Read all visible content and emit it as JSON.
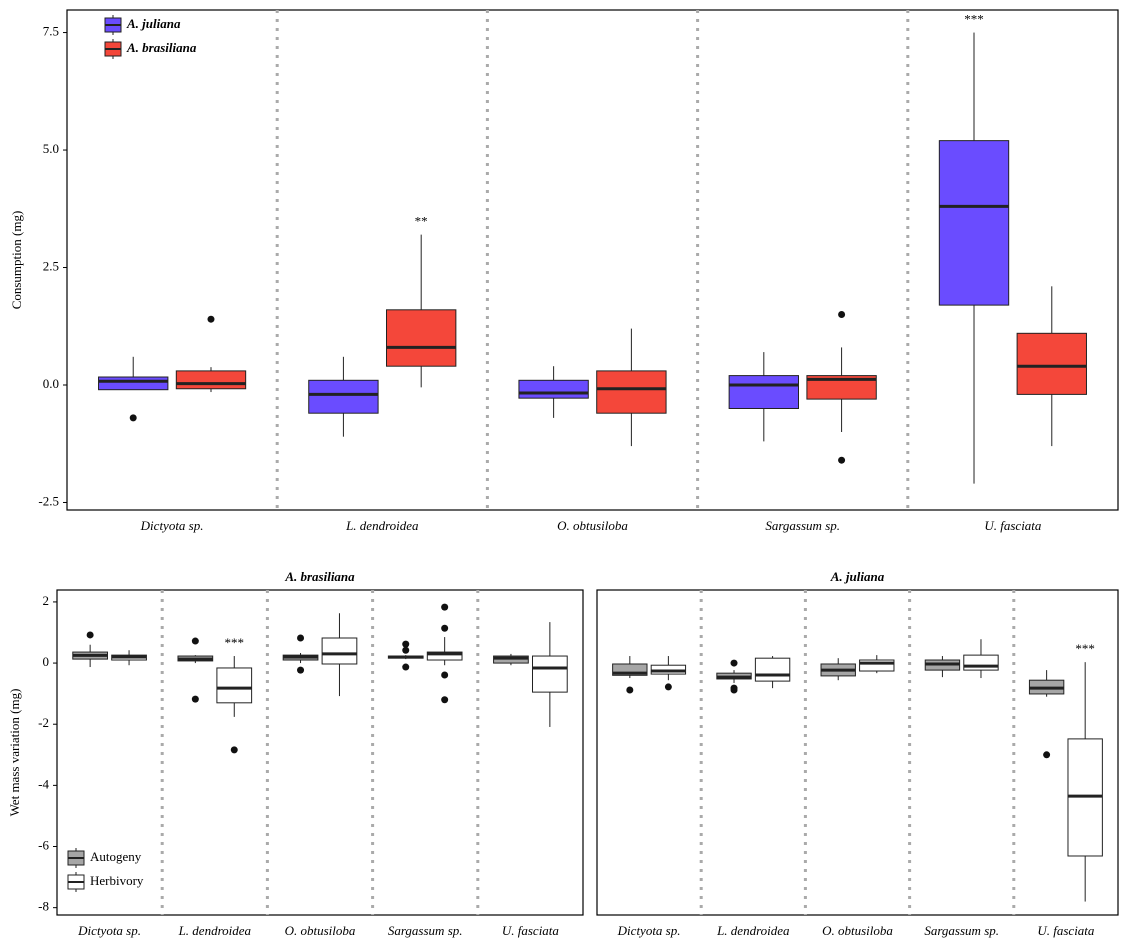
{
  "chart_data": [
    {
      "type": "boxplot",
      "y_label": "Consumption (mg)",
      "categories": [
        "Dictyota sp.",
        "L. dendroidea",
        "O. obtusiloba",
        "Sargassum sp.",
        "U. fasciata"
      ],
      "ylim": [
        -2.66,
        7.98
      ],
      "yticks": [
        {
          "value": -2.5,
          "label": "-2.5"
        },
        {
          "value": 0,
          "label": "0.0"
        },
        {
          "value": 2.5,
          "label": "2.5"
        },
        {
          "value": 5,
          "label": "5.0"
        },
        {
          "value": 7.5,
          "label": "7.5"
        }
      ],
      "legend": "top-left",
      "series": [
        {
          "name": "A. juliana",
          "color": "#6a4cff",
          "values": [
            {
              "min": -0.1,
              "q1": -0.1,
              "median": 0.08,
              "q3": 0.17,
              "max": 0.6,
              "outliers": [
                -0.7
              ]
            },
            {
              "min": -1.1,
              "q1": -0.6,
              "median": -0.2,
              "q3": 0.1,
              "max": 0.6,
              "outliers": []
            },
            {
              "min": -0.7,
              "q1": -0.28,
              "median": -0.17,
              "q3": 0.1,
              "max": 0.4,
              "outliers": []
            },
            {
              "min": -1.2,
              "q1": -0.5,
              "median": 0.0,
              "q3": 0.2,
              "max": 0.7,
              "outliers": []
            },
            {
              "min": -2.1,
              "q1": 1.7,
              "median": 3.8,
              "q3": 5.2,
              "max": 7.5,
              "outliers": [],
              "annotation": "***"
            }
          ]
        },
        {
          "name": "A. brasiliana",
          "color": "#f4473a",
          "values": [
            {
              "min": -0.15,
              "q1": -0.08,
              "median": 0.03,
              "q3": 0.3,
              "max": 0.38,
              "outliers": [
                1.4
              ]
            },
            {
              "min": -0.05,
              "q1": 0.4,
              "median": 0.8,
              "q3": 1.6,
              "max": 3.2,
              "outliers": [],
              "annotation": "**"
            },
            {
              "min": -1.3,
              "q1": -0.6,
              "median": -0.08,
              "q3": 0.3,
              "max": 1.2,
              "outliers": []
            },
            {
              "min": -1.0,
              "q1": -0.3,
              "median": 0.12,
              "q3": 0.2,
              "max": 0.8,
              "outliers": [
                1.5,
                -1.6
              ]
            },
            {
              "min": -1.3,
              "q1": -0.2,
              "median": 0.4,
              "q3": 1.1,
              "max": 2.1,
              "outliers": []
            }
          ]
        }
      ]
    },
    {
      "type": "boxplot",
      "title": "A. brasiliana",
      "y_label": "Wet mass variation (mg)",
      "categories": [
        "Dictyota sp.",
        "L. dendroidea",
        "O. obtusiloba",
        "Sargassum sp.",
        "U. fasciata"
      ],
      "ylim": [
        -8.24,
        2.39
      ],
      "yticks": [
        -8,
        -6,
        -4,
        -2,
        0,
        2
      ],
      "legend": "bottom-left",
      "series": [
        {
          "name": "Autogeny",
          "color": "#a6a6a6",
          "values": [
            {
              "min": -0.13,
              "q1": 0.13,
              "median": 0.25,
              "q3": 0.36,
              "max": 0.6,
              "outliers": [
                0.92
              ]
            },
            {
              "min": 0,
              "q1": 0.07,
              "median": 0.13,
              "q3": 0.23,
              "max": 0.26,
              "outliers": [
                0.72,
                -1.18
              ]
            },
            {
              "min": 0,
              "q1": 0.1,
              "median": 0.2,
              "q3": 0.26,
              "max": 0.33,
              "outliers": [
                0.82,
                -0.23
              ]
            },
            {
              "min": 0.13,
              "q1": 0.16,
              "median": 0.2,
              "q3": 0.23,
              "max": 0.26,
              "outliers": [
                0.62,
                0.42,
                -0.13
              ]
            },
            {
              "min": -0.07,
              "q1": 0,
              "median": 0.16,
              "q3": 0.23,
              "max": 0.3,
              "outliers": []
            }
          ]
        },
        {
          "name": "Herbivory",
          "color": "#ffffff",
          "values": [
            {
              "min": -0.07,
              "q1": 0.1,
              "median": 0.2,
              "q3": 0.26,
              "max": 0.42,
              "outliers": []
            },
            {
              "min": -1.76,
              "q1": -1.3,
              "median": -0.82,
              "q3": -0.16,
              "max": 0.23,
              "outliers": [
                -2.84
              ],
              "annotation": "***"
            },
            {
              "min": -1.08,
              "q1": -0.03,
              "median": 0.3,
              "q3": 0.82,
              "max": 1.63,
              "outliers": []
            },
            {
              "min": -0.07,
              "q1": 0.1,
              "median": 0.3,
              "q3": 0.36,
              "max": 0.85,
              "outliers": [
                1.83,
                1.14,
                -0.39,
                -1.2
              ]
            },
            {
              "min": -2.09,
              "q1": -0.95,
              "median": -0.16,
              "q3": 0.23,
              "max": 1.34,
              "outliers": []
            }
          ]
        }
      ]
    },
    {
      "type": "boxplot",
      "title": "A. juliana",
      "categories": [
        "Dictyota sp.",
        "L. dendroidea",
        "O. obtusiloba",
        "Sargassum sp.",
        "U. fasciata"
      ],
      "ylim": [
        -8.24,
        2.39
      ],
      "series": [
        {
          "color": "#a6a6a6",
          "values": [
            {
              "min": -0.49,
              "q1": -0.4,
              "median": -0.33,
              "q3": -0.03,
              "max": 0.23,
              "outliers": [
                -0.88
              ]
            },
            {
              "min": -0.65,
              "q1": -0.52,
              "median": -0.46,
              "q3": -0.33,
              "max": -0.23,
              "outliers": [
                0,
                -0.82,
                -0.88
              ]
            },
            {
              "min": -0.56,
              "q1": -0.42,
              "median": -0.23,
              "q3": -0.03,
              "max": 0.16,
              "outliers": []
            },
            {
              "min": -0.46,
              "q1": -0.23,
              "median": -0.03,
              "q3": 0.1,
              "max": 0.23,
              "outliers": []
            },
            {
              "min": -1.1,
              "q1": -1.01,
              "median": -0.82,
              "q3": -0.56,
              "max": -0.23,
              "outliers": [
                -3.0
              ]
            }
          ]
        },
        {
          "color": "#ffffff",
          "values": [
            {
              "min": -0.56,
              "q1": -0.36,
              "median": -0.26,
              "q3": -0.07,
              "max": 0.23,
              "outliers": [
                -0.78
              ]
            },
            {
              "min": -0.82,
              "q1": -0.59,
              "median": -0.39,
              "q3": 0.16,
              "max": 0.23,
              "outliers": []
            },
            {
              "min": -0.33,
              "q1": -0.26,
              "median": 0,
              "q3": 0.1,
              "max": 0.26,
              "outliers": []
            },
            {
              "min": -0.49,
              "q1": -0.23,
              "median": -0.1,
              "q3": 0.26,
              "max": 0.78,
              "outliers": []
            },
            {
              "min": -7.8,
              "q1": -6.31,
              "median": -4.35,
              "q3": -2.48,
              "max": 0.03,
              "outliers": [],
              "annotation": "***"
            }
          ]
        }
      ]
    }
  ]
}
